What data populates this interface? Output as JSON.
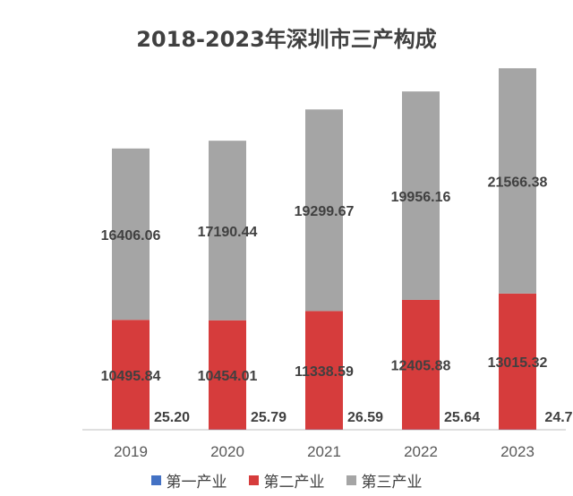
{
  "chart_data": {
    "type": "bar",
    "stacked": true,
    "title": "2018-2023年深圳市三产构成",
    "xlabel": "",
    "ylabel": "",
    "categories": [
      "2019",
      "2020",
      "2021",
      "2022",
      "2023"
    ],
    "series": [
      {
        "name": "第一产业",
        "color": "#4472c4",
        "values": [
          25.2,
          25.79,
          26.59,
          25.64,
          24.7
        ],
        "labels": [
          "25.20",
          "25.79",
          "26.59",
          "25.64",
          "24.7"
        ]
      },
      {
        "name": "第二产业",
        "color": "#d63c3c",
        "values": [
          10495.84,
          10454.01,
          11338.59,
          12405.88,
          13015.32
        ],
        "labels": [
          "10495.84",
          "10454.01",
          "11338.59",
          "12405.88",
          "13015.32"
        ]
      },
      {
        "name": "第三产业",
        "color": "#a5a5a5",
        "values": [
          16406.06,
          17190.44,
          19299.67,
          19956.16,
          21566.38
        ],
        "labels": [
          "16406.06",
          "17190.44",
          "19299.67",
          "19956.16",
          "21566.38"
        ]
      }
    ],
    "ylim": [
      0,
      36000
    ],
    "grid": false,
    "legend_position": "bottom"
  }
}
